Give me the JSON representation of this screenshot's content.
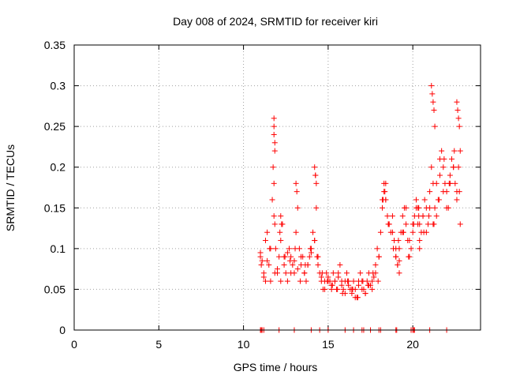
{
  "chart_data": {
    "type": "scatter",
    "title": "Day 008 of 2024, SRMTID for receiver kiri",
    "xlabel": "GPS time / hours",
    "ylabel": "SRMTID / TECUs",
    "xlim": [
      0,
      24
    ],
    "ylim": [
      0,
      0.35
    ],
    "x_ticks": [
      "0",
      "5",
      "10",
      "15",
      "20"
    ],
    "y_ticks": [
      "0",
      "0.05",
      "0.1",
      "0.15",
      "0.2",
      "0.25",
      "0.3",
      "0.35"
    ],
    "grid": true,
    "marker": "+",
    "series_color": "#ff0000",
    "series": [
      {
        "x": [
          11.0,
          11.1,
          11.2,
          11.3,
          11.4,
          11.5,
          11.6,
          11.7,
          11.75,
          11.8,
          11.85,
          11.9,
          12.0,
          12.1,
          12.2,
          12.3,
          12.4,
          12.5,
          12.6,
          12.7,
          12.8,
          12.9,
          13.0,
          13.1,
          13.2,
          13.3,
          13.4,
          13.5,
          13.6,
          13.7,
          13.8,
          13.9,
          14.0,
          14.1,
          14.2,
          14.25,
          14.3,
          14.4,
          14.5,
          14.6,
          14.7,
          14.8,
          14.9,
          15.0,
          15.1,
          15.2,
          15.3,
          15.4,
          15.5,
          15.6,
          15.7,
          15.8,
          15.9,
          16.0,
          16.1,
          16.2,
          16.3,
          16.4,
          16.5,
          16.6,
          16.7,
          16.8,
          16.9,
          17.0,
          17.1,
          17.2,
          17.3,
          17.4,
          17.5,
          17.6,
          17.7,
          17.8,
          17.9,
          18.0,
          18.1,
          18.2,
          18.3,
          18.4,
          18.5,
          18.6,
          18.7,
          18.8,
          18.9,
          19.0,
          19.1,
          19.2,
          19.3,
          19.4,
          19.5,
          19.6,
          19.7,
          19.8,
          19.9,
          20.0,
          20.1,
          20.2,
          20.3,
          20.4,
          20.5,
          20.6,
          20.7,
          20.8,
          20.9,
          21.0,
          21.1,
          21.2,
          21.3,
          21.4,
          21.5,
          21.6,
          21.7,
          21.8,
          21.9,
          22.0,
          22.1,
          22.2,
          22.3,
          22.4,
          22.5,
          22.6,
          22.7,
          22.8,
          11.0,
          11.2,
          11.4,
          11.6,
          11.8,
          12.0,
          12.2,
          12.4,
          12.6,
          12.8,
          13.0,
          13.2,
          13.4,
          13.6,
          13.8,
          14.0,
          14.2,
          14.4,
          14.6,
          14.8,
          15.0,
          15.2,
          15.4,
          15.6,
          15.8,
          16.0,
          16.2,
          16.4,
          16.6,
          16.8,
          17.0,
          17.2,
          17.4,
          17.6,
          17.8,
          18.0,
          18.2,
          18.4,
          18.6,
          18.8,
          19.0,
          19.2,
          19.4,
          19.6,
          19.8,
          20.0,
          20.2,
          20.4,
          20.6,
          20.8,
          21.0,
          21.2,
          21.4,
          21.6,
          21.8,
          22.0,
          22.2,
          22.4,
          22.6,
          22.8,
          11.05,
          11.3,
          11.55,
          11.85,
          12.15,
          12.45,
          12.75,
          13.05,
          13.35,
          13.65,
          13.95,
          14.35,
          14.65,
          14.95,
          15.25,
          15.55,
          15.85,
          16.15,
          16.45,
          16.75,
          17.05,
          17.35,
          17.65,
          17.95,
          18.25,
          18.55,
          18.85,
          19.15,
          19.45,
          19.75,
          20.05,
          20.35,
          20.65,
          20.95,
          21.25,
          21.55,
          21.85,
          22.15,
          22.45,
          22.75,
          11.8,
          11.8,
          11.8,
          11.85,
          11.85,
          14.2,
          14.25,
          14.3,
          21.1,
          21.15,
          21.2,
          21.25,
          21.3,
          22.6,
          22.65,
          22.7,
          22.75,
          13.1,
          13.15,
          12.2,
          12.25,
          18.3,
          18.35,
          18.4,
          20.3,
          20.35,
          20.4,
          19.0,
          19.1,
          19.2
        ],
        "y": [
          0.09,
          0.085,
          0.07,
          0.11,
          0.12,
          0.08,
          0.06,
          0.16,
          0.2,
          0.18,
          0.13,
          0.1,
          0.07,
          0.09,
          0.11,
          0.13,
          0.09,
          0.07,
          0.06,
          0.1,
          0.09,
          0.08,
          0.07,
          0.12,
          0.15,
          0.1,
          0.08,
          0.09,
          0.07,
          0.06,
          0.08,
          0.09,
          0.1,
          0.12,
          0.11,
          0.19,
          0.15,
          0.09,
          0.07,
          0.06,
          0.05,
          0.06,
          0.07,
          0.065,
          0.06,
          0.055,
          0.07,
          0.06,
          0.05,
          0.07,
          0.08,
          0.06,
          0.05,
          0.06,
          0.07,
          0.055,
          0.05,
          0.045,
          0.06,
          0.05,
          0.04,
          0.055,
          0.07,
          0.06,
          0.05,
          0.045,
          0.06,
          0.07,
          0.055,
          0.05,
          0.065,
          0.08,
          0.1,
          0.09,
          0.12,
          0.15,
          0.17,
          0.16,
          0.14,
          0.13,
          0.12,
          0.14,
          0.11,
          0.09,
          0.08,
          0.1,
          0.12,
          0.14,
          0.15,
          0.13,
          0.11,
          0.09,
          0.1,
          0.12,
          0.14,
          0.16,
          0.13,
          0.11,
          0.12,
          0.14,
          0.16,
          0.15,
          0.13,
          0.17,
          0.2,
          0.18,
          0.15,
          0.14,
          0.16,
          0.19,
          0.22,
          0.2,
          0.18,
          0.17,
          0.15,
          0.19,
          0.21,
          0.2,
          0.18,
          0.16,
          0.2,
          0.22,
          0.095,
          0.065,
          0.085,
          0.1,
          0.14,
          0.075,
          0.06,
          0.08,
          0.095,
          0.07,
          0.085,
          0.075,
          0.09,
          0.07,
          0.08,
          0.095,
          0.11,
          0.08,
          0.065,
          0.05,
          0.06,
          0.05,
          0.06,
          0.065,
          0.055,
          0.045,
          0.06,
          0.05,
          0.04,
          0.06,
          0.05,
          0.045,
          0.055,
          0.06,
          0.07,
          0.09,
          0.16,
          0.18,
          0.13,
          0.12,
          0.1,
          0.085,
          0.12,
          0.15,
          0.11,
          0.13,
          0.15,
          0.1,
          0.14,
          0.12,
          0.15,
          0.13,
          0.18,
          0.21,
          0.17,
          0.15,
          0.18,
          0.2,
          0.17,
          0.13,
          0.08,
          0.06,
          0.1,
          0.07,
          0.12,
          0.09,
          0.085,
          0.1,
          0.06,
          0.08,
          0.1,
          0.09,
          0.07,
          0.06,
          0.055,
          0.05,
          0.045,
          0.06,
          0.05,
          0.04,
          0.06,
          0.055,
          0.07,
          0.06,
          0.16,
          0.13,
          0.1,
          0.11,
          0.12,
          0.09,
          0.13,
          0.15,
          0.12,
          0.14,
          0.13,
          0.16,
          0.21,
          0.18,
          0.22,
          0.17,
          0.26,
          0.25,
          0.24,
          0.23,
          0.22,
          0.2,
          0.19,
          0.18,
          0.3,
          0.29,
          0.28,
          0.27,
          0.25,
          0.28,
          0.27,
          0.26,
          0.25,
          0.18,
          0.17,
          0.14,
          0.13,
          0.18,
          0.17,
          0.16,
          0.15,
          0.14,
          0.13,
          0.09,
          0.08,
          0.07
        ],
        "zeros_x": [
          11.0,
          11.05,
          11.1,
          11.2,
          12.1,
          13.0,
          14.0,
          14.5,
          15.0,
          16.0,
          16.5,
          17.0,
          17.1,
          17.5,
          18.0,
          18.1,
          19.0,
          19.05,
          19.9,
          20.0,
          20.05,
          20.1,
          21.0,
          22.0
        ]
      }
    ]
  }
}
